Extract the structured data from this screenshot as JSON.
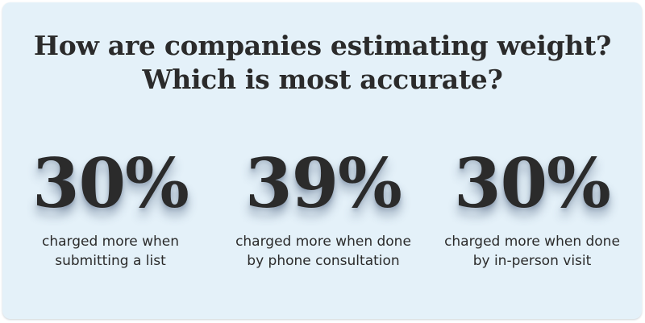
{
  "headline": {
    "line1": "How are companies estimating weight?",
    "line2": "Which is most accurate?"
  },
  "stats": [
    {
      "value": "30%",
      "caption": "charged more when\nsubmitting a list"
    },
    {
      "value": "39%",
      "caption": "charged more when done\nby phone consultation"
    },
    {
      "value": "30%",
      "caption": "charged more when done\nby in-person visit"
    }
  ],
  "colors": {
    "card_background": "#e4f1f9",
    "text": "#2b2b2b"
  }
}
